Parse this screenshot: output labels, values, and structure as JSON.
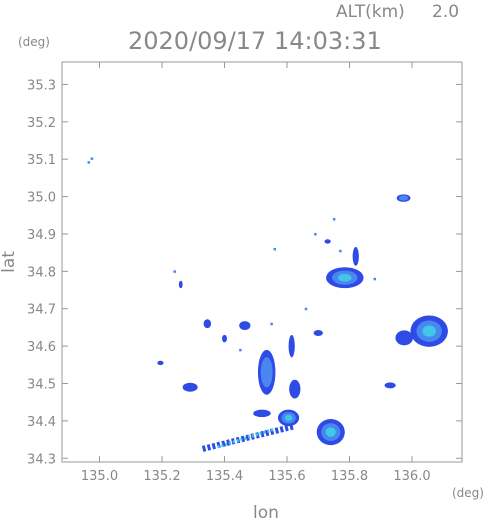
{
  "header": {
    "alt_label": "ALT(km)",
    "alt_value": "2.0",
    "timestamp": "2020/09/17 14:03:31"
  },
  "chart_data": {
    "type": "heatmap",
    "title": "2020/09/17 14:03:31",
    "xlabel": "lon",
    "ylabel": "lat",
    "x_unit": "(deg)",
    "y_unit": "(deg)",
    "xlim": [
      134.88,
      136.16
    ],
    "ylim": [
      34.29,
      35.36
    ],
    "x_ticks": [
      "135.0",
      "135.2",
      "135.4",
      "135.6",
      "135.8",
      "136.0"
    ],
    "y_ticks": [
      "34.3",
      "34.4",
      "34.5",
      "34.6",
      "34.7",
      "34.8",
      "34.9",
      "35.0",
      "35.1",
      "35.2",
      "35.3"
    ],
    "grid": false,
    "colors": {
      "level1": "#2e4be6",
      "level2": "#4a86f0",
      "level3": "#41c8e8",
      "level4": "#3ee0a8",
      "frame": "#999999"
    },
    "echoes": [
      {
        "id": "echo-1",
        "lon": 135.973,
        "lat": 34.996,
        "rx": 0.022,
        "ry": 0.01,
        "level": 2
      },
      {
        "id": "echo-2",
        "lon": 135.785,
        "lat": 34.783,
        "rx": 0.06,
        "ry": 0.028,
        "level": 3
      },
      {
        "id": "echo-3",
        "lon": 136.055,
        "lat": 34.64,
        "rx": 0.06,
        "ry": 0.042,
        "level": 3
      },
      {
        "id": "echo-4",
        "lon": 135.975,
        "lat": 34.622,
        "rx": 0.028,
        "ry": 0.02,
        "level": 1
      },
      {
        "id": "echo-5",
        "lon": 135.74,
        "lat": 34.37,
        "rx": 0.045,
        "ry": 0.035,
        "level": 3
      },
      {
        "id": "echo-6",
        "lon": 135.605,
        "lat": 34.408,
        "rx": 0.034,
        "ry": 0.022,
        "level": 3
      },
      {
        "id": "echo-7",
        "lon": 135.535,
        "lat": 34.53,
        "rx": 0.028,
        "ry": 0.06,
        "level": 2
      },
      {
        "id": "echo-8",
        "lon": 135.29,
        "lat": 34.49,
        "rx": 0.024,
        "ry": 0.012,
        "level": 1
      },
      {
        "id": "echo-9",
        "lon": 135.465,
        "lat": 34.655,
        "rx": 0.018,
        "ry": 0.012,
        "level": 1
      },
      {
        "id": "echo-10",
        "lon": 135.7,
        "lat": 34.635,
        "rx": 0.015,
        "ry": 0.008,
        "level": 1
      },
      {
        "id": "echo-11",
        "lon": 135.93,
        "lat": 34.495,
        "rx": 0.018,
        "ry": 0.008,
        "level": 1
      },
      {
        "id": "echo-12",
        "lon": 135.82,
        "lat": 34.84,
        "rx": 0.01,
        "ry": 0.025,
        "level": 1
      },
      {
        "id": "echo-13",
        "lon": 135.195,
        "lat": 34.555,
        "rx": 0.01,
        "ry": 0.006,
        "level": 1
      },
      {
        "id": "echo-14",
        "lon": 135.615,
        "lat": 34.6,
        "rx": 0.01,
        "ry": 0.03,
        "level": 1
      },
      {
        "id": "echo-15",
        "lon": 135.625,
        "lat": 34.485,
        "rx": 0.018,
        "ry": 0.025,
        "level": 1
      },
      {
        "id": "echo-16",
        "lon": 135.52,
        "lat": 34.42,
        "rx": 0.028,
        "ry": 0.01,
        "level": 1
      },
      {
        "id": "echo-17",
        "lon": 135.345,
        "lat": 34.66,
        "rx": 0.012,
        "ry": 0.012,
        "level": 1
      },
      {
        "id": "echo-18",
        "lon": 135.26,
        "lat": 34.765,
        "rx": 0.006,
        "ry": 0.01,
        "level": 1
      },
      {
        "id": "echo-19",
        "lon": 135.73,
        "lat": 34.88,
        "rx": 0.01,
        "ry": 0.006,
        "level": 1
      },
      {
        "id": "echo-20",
        "lon": 135.4,
        "lat": 34.62,
        "rx": 0.008,
        "ry": 0.01,
        "level": 1
      }
    ],
    "band": {
      "lon0": 135.33,
      "lat0": 34.325,
      "lon1": 135.62,
      "lat1": 34.385
    },
    "specks": [
      {
        "lon": 134.965,
        "lat": 35.092
      },
      {
        "lon": 134.975,
        "lat": 35.102
      },
      {
        "lon": 135.77,
        "lat": 34.855
      },
      {
        "lon": 135.56,
        "lat": 34.86
      },
      {
        "lon": 135.55,
        "lat": 34.66
      },
      {
        "lon": 135.45,
        "lat": 34.59
      },
      {
        "lon": 135.66,
        "lat": 34.7
      },
      {
        "lon": 135.75,
        "lat": 34.94
      },
      {
        "lon": 135.24,
        "lat": 34.8
      },
      {
        "lon": 135.88,
        "lat": 34.78
      },
      {
        "lon": 135.69,
        "lat": 34.9
      }
    ]
  }
}
